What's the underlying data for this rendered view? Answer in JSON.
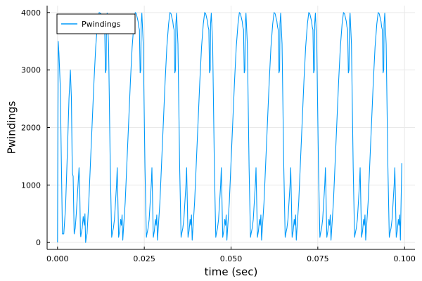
{
  "chart_data": {
    "type": "line",
    "title": "",
    "xlabel": "time (sec)",
    "ylabel": "Pwindings",
    "xlim": [
      -0.003,
      0.103
    ],
    "ylim": [
      -120,
      4120
    ],
    "xticks": [
      0.0,
      0.025,
      0.05,
      0.075,
      0.1
    ],
    "xtick_labels": [
      "0.000",
      "0.025",
      "0.050",
      "0.075",
      "0.100"
    ],
    "yticks": [
      0,
      1000,
      2000,
      3000,
      4000
    ],
    "ytick_labels": [
      "0",
      "1000",
      "2000",
      "3000",
      "4000"
    ],
    "grid": true,
    "legend_position": "top-left",
    "colors": {
      "series": "#009AFA",
      "grid": "#E9E9E9",
      "axis": "#000000"
    },
    "series": [
      {
        "name": "Pwindings",
        "color": "#009AFA",
        "x": [
          0,
          0.0002,
          0.0004,
          0.0008,
          0.0011,
          0.0013,
          0.0014,
          0.0018,
          0.0023,
          0.0028,
          0.0033,
          0.0037,
          0.004,
          0.0042,
          0.0043,
          0.0045,
          0.0048,
          0.0051,
          0.0054,
          0.0057,
          0.006,
          0.0062,
          0.0064,
          0.0066,
          0.0067,
          0.0068,
          0.0071,
          0.0074,
          0.0077,
          0.0079,
          0.0081,
          0.0083,
          0.0085,
          0.009,
          0.0095,
          0.01,
          0.0105,
          0.011,
          0.0115,
          0.012,
          0.0125,
          0.0128,
          0.013,
          0.0133,
          0.0136,
          0.0138,
          0.014,
          0.0141,
          0.0143,
          0.0147,
          0.0152,
          0.0156,
          0.0158,
          0.0161,
          0.0164,
          0.0167,
          0.017,
          0.0172,
          0.0174,
          0.0176,
          0.0179,
          0.0182,
          0.0184,
          0.0186,
          0.0188,
          0.0195,
          0.02,
          0.0205,
          0.021,
          0.0215,
          0.022,
          0.0224,
          0.0227,
          0.023,
          0.0232,
          0.0234,
          0.0236,
          0.0238,
          0.024,
          0.0241,
          0.0243,
          0.0247,
          0.0252,
          0.0256,
          0.0258,
          0.0261,
          0.0264,
          0.0267,
          0.027,
          0.0272,
          0.0274,
          0.0276,
          0.0279,
          0.0282,
          0.0284,
          0.0286,
          0.0288,
          0.0295,
          0.03,
          0.0305,
          0.031,
          0.0315,
          0.032,
          0.0324,
          0.0327,
          0.033,
          0.0332,
          0.0334,
          0.0336,
          0.0338,
          0.034,
          0.0341,
          0.0343,
          0.0347,
          0.0352,
          0.0356,
          0.0358,
          0.0361,
          0.0364,
          0.0367,
          0.037,
          0.0372,
          0.0374,
          0.0376,
          0.0379,
          0.0382,
          0.0384,
          0.0386,
          0.0388,
          0.0395,
          0.04,
          0.0405,
          0.041,
          0.0415,
          0.042,
          0.0424,
          0.0427,
          0.043,
          0.0432,
          0.0434,
          0.0436,
          0.0438,
          0.044,
          0.0441,
          0.0443,
          0.0447,
          0.0452,
          0.0456,
          0.0458,
          0.0461,
          0.0464,
          0.0467,
          0.047,
          0.0472,
          0.0474,
          0.0476,
          0.0479,
          0.0482,
          0.0484,
          0.0486,
          0.0488,
          0.0495,
          0.05,
          0.0505,
          0.051,
          0.0515,
          0.052,
          0.0524,
          0.0527,
          0.053,
          0.0532,
          0.0534,
          0.0536,
          0.0538,
          0.054,
          0.0541,
          0.0543,
          0.0547,
          0.0552,
          0.0556,
          0.0558,
          0.0561,
          0.0564,
          0.0567,
          0.057,
          0.0572,
          0.0574,
          0.0576,
          0.0579,
          0.0582,
          0.0584,
          0.0586,
          0.0588,
          0.0595,
          0.06,
          0.0605,
          0.061,
          0.0615,
          0.062,
          0.0624,
          0.0627,
          0.063,
          0.0632,
          0.0634,
          0.0636,
          0.0638,
          0.064,
          0.0641,
          0.0643,
          0.0647,
          0.0652,
          0.0656,
          0.0658,
          0.0661,
          0.0664,
          0.0667,
          0.067,
          0.0672,
          0.0674,
          0.0676,
          0.0679,
          0.0682,
          0.0684,
          0.0686,
          0.0688,
          0.0695,
          0.07,
          0.0705,
          0.071,
          0.0715,
          0.072,
          0.0724,
          0.0727,
          0.073,
          0.0732,
          0.0734,
          0.0736,
          0.0738,
          0.074,
          0.0741,
          0.0743,
          0.0747,
          0.0752,
          0.0756,
          0.0758,
          0.0761,
          0.0764,
          0.0767,
          0.077,
          0.0772,
          0.0774,
          0.0776,
          0.0779,
          0.0782,
          0.0784,
          0.0786,
          0.0788,
          0.0795,
          0.08,
          0.0805,
          0.081,
          0.0815,
          0.082,
          0.0824,
          0.0827,
          0.083,
          0.0832,
          0.0834,
          0.0836,
          0.0838,
          0.084,
          0.0841,
          0.0843,
          0.0847,
          0.0852,
          0.0856,
          0.0858,
          0.0861,
          0.0864,
          0.0867,
          0.087,
          0.0872,
          0.0874,
          0.0876,
          0.0879,
          0.0882,
          0.0884,
          0.0886,
          0.0888,
          0.0895,
          0.09,
          0.0905,
          0.091,
          0.0915,
          0.092,
          0.0924,
          0.0927,
          0.093,
          0.0932,
          0.0934,
          0.0936,
          0.0938,
          0.094,
          0.0941,
          0.0943,
          0.0947,
          0.0952,
          0.0956,
          0.0958,
          0.0961,
          0.0964,
          0.0967,
          0.097,
          0.0972,
          0.0974,
          0.0976,
          0.0979,
          0.0982,
          0.0984,
          0.0986,
          0.0988,
          0.0992
        ],
        "y": [
          0,
          3500,
          3300,
          2700,
          1400,
          600,
          150,
          150,
          600,
          1500,
          2500,
          3000,
          2500,
          1500,
          1200,
          1150,
          150,
          250,
          500,
          800,
          1100,
          1300,
          900,
          150,
          100,
          150,
          250,
          450,
          300,
          500,
          0,
          100,
          150,
          700,
          1400,
          2100,
          2800,
          3400,
          3800,
          4000,
          3980,
          3900,
          3850,
          3750,
          3700,
          2950,
          3000,
          3800,
          3990,
          3450,
          1300,
          90,
          160,
          250,
          400,
          700,
          1000,
          1300,
          700,
          90,
          200,
          400,
          300,
          480,
          40,
          700,
          1400,
          2100,
          2800,
          3400,
          3800,
          4000,
          3980,
          3900,
          3850,
          3750,
          3700,
          2950,
          3000,
          3800,
          3990,
          3450,
          1300,
          90,
          160,
          250,
          400,
          700,
          1000,
          1300,
          700,
          90,
          200,
          400,
          300,
          480,
          40,
          700,
          1400,
          2100,
          2800,
          3400,
          3800,
          4000,
          3980,
          3900,
          3850,
          3750,
          3700,
          2950,
          3000,
          3800,
          3990,
          3450,
          1300,
          90,
          160,
          250,
          400,
          700,
          1000,
          1300,
          700,
          90,
          200,
          400,
          300,
          480,
          40,
          700,
          1400,
          2100,
          2800,
          3400,
          3800,
          4000,
          3980,
          3900,
          3850,
          3750,
          3700,
          2950,
          3000,
          3800,
          3990,
          3450,
          1300,
          90,
          160,
          250,
          400,
          700,
          1000,
          1300,
          700,
          90,
          200,
          400,
          300,
          480,
          40,
          700,
          1400,
          2100,
          2800,
          3400,
          3800,
          4000,
          3980,
          3900,
          3850,
          3750,
          3700,
          2950,
          3000,
          3800,
          3990,
          3450,
          1300,
          90,
          160,
          250,
          400,
          700,
          1000,
          1300,
          700,
          90,
          200,
          400,
          300,
          480,
          40,
          700,
          1400,
          2100,
          2800,
          3400,
          3800,
          4000,
          3980,
          3900,
          3850,
          3750,
          3700,
          2950,
          3000,
          3800,
          3990,
          3450,
          1300,
          90,
          160,
          250,
          400,
          700,
          1000,
          1300,
          700,
          90,
          200,
          400,
          300,
          480,
          40,
          700,
          1400,
          2100,
          2800,
          3400,
          3800,
          4000,
          3980,
          3900,
          3850,
          3750,
          3700,
          2950,
          3000,
          3800,
          3990,
          3450,
          1300,
          90,
          160,
          250,
          400,
          700,
          1000,
          1300,
          700,
          90,
          200,
          400,
          300,
          480,
          40,
          700,
          1400,
          2100,
          2800,
          3400,
          3800,
          4000,
          3980,
          3900,
          3850,
          3750,
          3700,
          2950,
          3000,
          3800,
          3990,
          3450,
          1300,
          90,
          160,
          250,
          400,
          700,
          1000,
          1300,
          700,
          90,
          200,
          400,
          300,
          480,
          40,
          700,
          1400,
          2100,
          2800,
          3400,
          3800,
          4000,
          3980,
          3900,
          3850,
          3750,
          3700,
          2950,
          3000,
          3800,
          3990,
          3450,
          1300,
          90,
          160,
          250,
          400,
          700,
          1000,
          1300,
          700,
          90,
          200,
          400,
          300,
          480,
          40,
          1380
        ]
      }
    ]
  }
}
